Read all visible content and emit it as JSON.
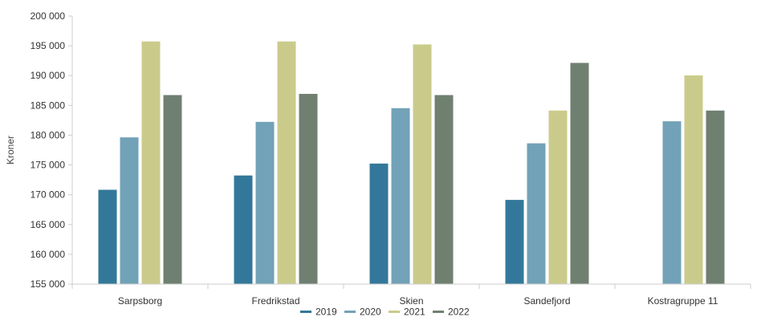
{
  "chart_data": {
    "type": "bar",
    "title": "",
    "xlabel": "",
    "ylabel": "Kroner",
    "ylim": [
      155000,
      200000
    ],
    "yticks": [
      155000,
      160000,
      165000,
      170000,
      175000,
      180000,
      185000,
      190000,
      195000,
      200000
    ],
    "ytick_labels": [
      "155 000",
      "160 000",
      "165 000",
      "170 000",
      "175 000",
      "180 000",
      "185 000",
      "190 000",
      "195 000",
      "200 000"
    ],
    "grid": false,
    "legend_position": "bottom",
    "categories": [
      "Sarpsborg",
      "Fredrikstad",
      "Skien",
      "Sandefjord",
      "Kostragruppe 11"
    ],
    "series": [
      {
        "name": "2019",
        "color": "#33789a",
        "values": [
          170900,
          173300,
          175300,
          169200,
          null
        ]
      },
      {
        "name": "2020",
        "color": "#72a2b7",
        "values": [
          179700,
          182300,
          184600,
          178700,
          182400
        ]
      },
      {
        "name": "2021",
        "color": "#cacb8b",
        "values": [
          195800,
          195800,
          195300,
          184200,
          190100
        ]
      },
      {
        "name": "2022",
        "color": "#6f8070",
        "values": [
          186800,
          187000,
          186800,
          192200,
          184200
        ]
      }
    ]
  }
}
